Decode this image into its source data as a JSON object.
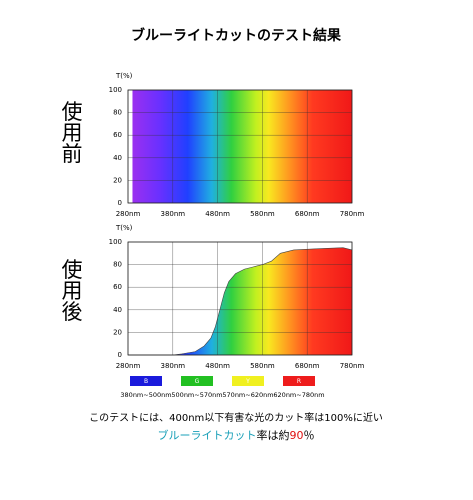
{
  "title": "ブルーライトカットのテスト結果",
  "side_labels": [
    "使用前",
    "使用後"
  ],
  "chart_data": [
    {
      "type": "area",
      "y_label": "T(%)",
      "x": [
        290,
        780
      ],
      "values": [
        100,
        100
      ],
      "xlim": [
        280,
        780
      ],
      "ylim": [
        0,
        100
      ],
      "xticks": [
        {
          "value": 280,
          "label": "280nm"
        },
        {
          "value": 380,
          "label": "380nm"
        },
        {
          "value": 480,
          "label": "480nm"
        },
        {
          "value": 580,
          "label": "580nm"
        },
        {
          "value": 680,
          "label": "680nm"
        },
        {
          "value": 780,
          "label": "780nm"
        }
      ],
      "yticks": [
        0,
        20,
        40,
        60,
        80,
        100
      ],
      "grid": true
    },
    {
      "type": "area",
      "y_label": "T(%)",
      "x": [
        280,
        380,
        400,
        430,
        450,
        465,
        475,
        485,
        495,
        505,
        520,
        540,
        560,
        580,
        600,
        620,
        650,
        700,
        760,
        780
      ],
      "values": [
        0,
        0,
        1,
        3,
        8,
        15,
        25,
        40,
        55,
        65,
        72,
        76,
        78,
        80,
        83,
        90,
        93,
        94,
        95,
        93
      ],
      "xlim": [
        280,
        780
      ],
      "ylim": [
        0,
        100
      ],
      "xticks": [
        {
          "value": 280,
          "label": "280nm"
        },
        {
          "value": 380,
          "label": "380nm"
        },
        {
          "value": 480,
          "label": "480nm"
        },
        {
          "value": 580,
          "label": "580nm"
        },
        {
          "value": 680,
          "label": "680nm"
        },
        {
          "value": 780,
          "label": "780nm"
        }
      ],
      "yticks": [
        0,
        20,
        40,
        60,
        80,
        100
      ],
      "grid": true
    }
  ],
  "legend": [
    {
      "label": "B",
      "range": "380nm~500nm",
      "color": "#1a1adc"
    },
    {
      "label": "G",
      "range": "500nm~570nm",
      "color": "#22c022"
    },
    {
      "label": "Y",
      "range": "570nm~620nm",
      "color": "#f0f020"
    },
    {
      "label": "R",
      "range": "620nm~780nm",
      "color": "#ee1c1c"
    }
  ],
  "footnote": {
    "line1": "このテストには、400nm以下有害な光のカット率は100%に近い",
    "line2": [
      {
        "text": "ブルーライトカット",
        "color": "#1aa0b8"
      },
      {
        "text": "率は約",
        "color": "#000000"
      },
      {
        "text": "90",
        "color": "#e01010"
      },
      {
        "text": "％",
        "color": "#000000"
      }
    ]
  }
}
